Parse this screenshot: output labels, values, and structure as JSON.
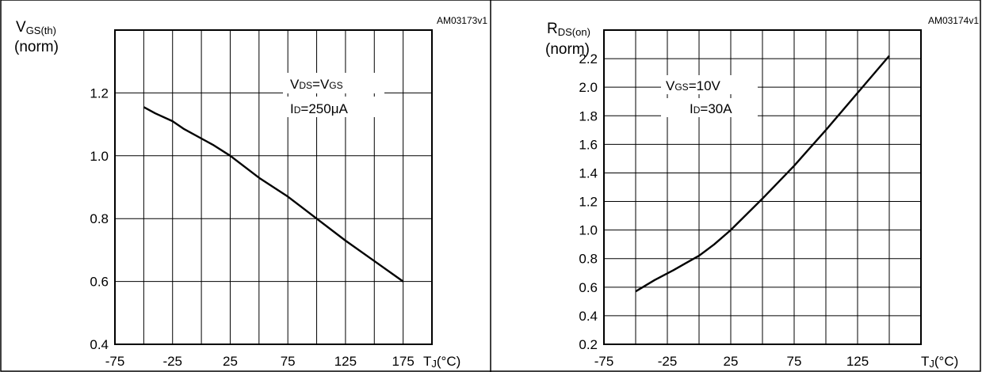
{
  "chart_data": [
    {
      "type": "line",
      "figure_id": "AM03173v1",
      "ylabel_main": "V",
      "ylabel_sub": "GS(th)",
      "ylabel_unit": "(norm)",
      "xlabel_main": "T",
      "xlabel_sub": "J",
      "xlabel_unit": "(°C)",
      "annotation": [
        {
          "main": "V",
          "sub": "DS",
          "rest": "=V",
          "sub2": "GS",
          "tail": ""
        },
        {
          "main": "I",
          "sub": "D",
          "rest": "=250μA",
          "sub2": "",
          "tail": ""
        }
      ],
      "xlim": [
        -75,
        200
      ],
      "ylim": [
        0.4,
        1.4
      ],
      "x_ticks": [
        -75,
        -25,
        25,
        75,
        125,
        175
      ],
      "x_tick_labels": [
        "-75",
        "-25",
        "25",
        "75",
        "125",
        "175"
      ],
      "x_grid_step": 25,
      "y_ticks": [
        0.4,
        0.6,
        0.8,
        1.0,
        1.2
      ],
      "y_tick_labels": [
        "0.4",
        "0.6",
        "0.8",
        "1.0",
        "1.2"
      ],
      "y_grid": [
        0.4,
        0.6,
        0.8,
        1.0,
        1.2
      ],
      "series": [
        {
          "x": [
            -50,
            -40,
            -25,
            -15,
            0,
            10,
            25,
            50,
            75,
            100,
            125,
            150,
            175
          ],
          "y": [
            1.155,
            1.135,
            1.11,
            1.085,
            1.055,
            1.035,
            1.0,
            0.93,
            0.87,
            0.8,
            0.73,
            0.665,
            0.6
          ]
        }
      ]
    },
    {
      "type": "line",
      "figure_id": "AM03174v1",
      "ylabel_main": "R",
      "ylabel_sub": "DS(on)",
      "ylabel_unit": "(norm)",
      "xlabel_main": "T",
      "xlabel_sub": "J",
      "xlabel_unit": "(°C)",
      "annotation": [
        {
          "main": "V",
          "sub": "GS",
          "rest": "=10V",
          "sub2": "",
          "tail": ""
        },
        {
          "main": "I",
          "sub": "D",
          "rest": "=30A",
          "sub2": "",
          "tail": ""
        }
      ],
      "xlim": [
        -75,
        175
      ],
      "ylim": [
        0.2,
        2.4
      ],
      "x_ticks": [
        -75,
        -25,
        25,
        75,
        125
      ],
      "x_tick_labels": [
        "-75",
        "-25",
        "25",
        "75",
        "125"
      ],
      "x_grid_step": 25,
      "y_ticks": [
        0.2,
        0.4,
        0.6,
        0.8,
        1.0,
        1.2,
        1.4,
        1.6,
        1.8,
        2.0,
        2.2
      ],
      "y_tick_labels": [
        "0.2",
        "0.4",
        "0.6",
        "0.8",
        "1.0",
        "1.2",
        "1.4",
        "1.6",
        "1.8",
        "2.0",
        "2.2"
      ],
      "y_grid": [
        0.2,
        0.4,
        0.6,
        0.8,
        1.0,
        1.2,
        1.4,
        1.6,
        1.8,
        2.0,
        2.2,
        2.4
      ],
      "series": [
        {
          "x": [
            -50,
            -35,
            -20,
            -10,
            0,
            12,
            25,
            50,
            75,
            100,
            125,
            150
          ],
          "y": [
            0.57,
            0.65,
            0.72,
            0.77,
            0.82,
            0.9,
            1.0,
            1.22,
            1.45,
            1.7,
            1.96,
            2.22
          ]
        }
      ]
    }
  ]
}
